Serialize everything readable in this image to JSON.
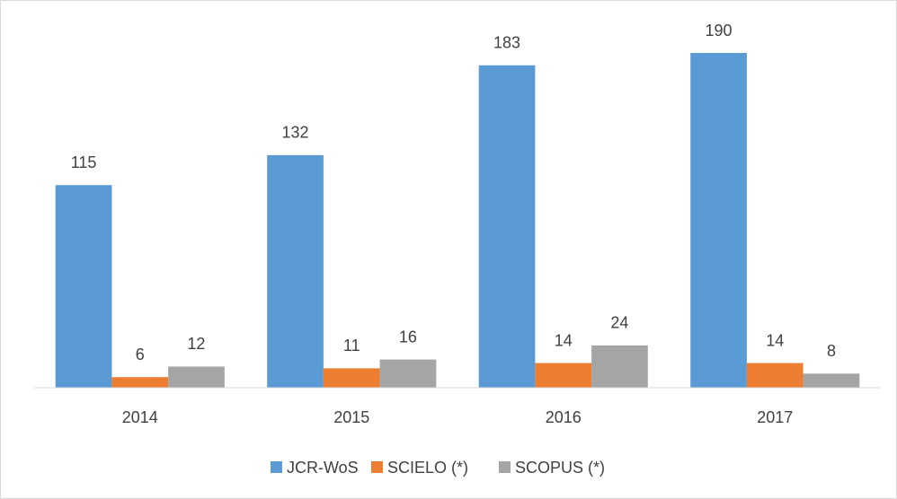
{
  "chart_data": {
    "type": "bar",
    "categories": [
      "2014",
      "2015",
      "2016",
      "2017"
    ],
    "series": [
      {
        "name": "JCR-WoS",
        "color": "#5b9bd5",
        "values": [
          115,
          132,
          183,
          190
        ]
      },
      {
        "name": "SCIELO (*)",
        "color": "#ed7d31",
        "values": [
          6,
          11,
          14,
          14
        ]
      },
      {
        "name": "SCOPUS (*)",
        "color": "#a5a5a5",
        "values": [
          12,
          16,
          24,
          8
        ]
      }
    ],
    "legend": "bottom",
    "grid": false
  }
}
